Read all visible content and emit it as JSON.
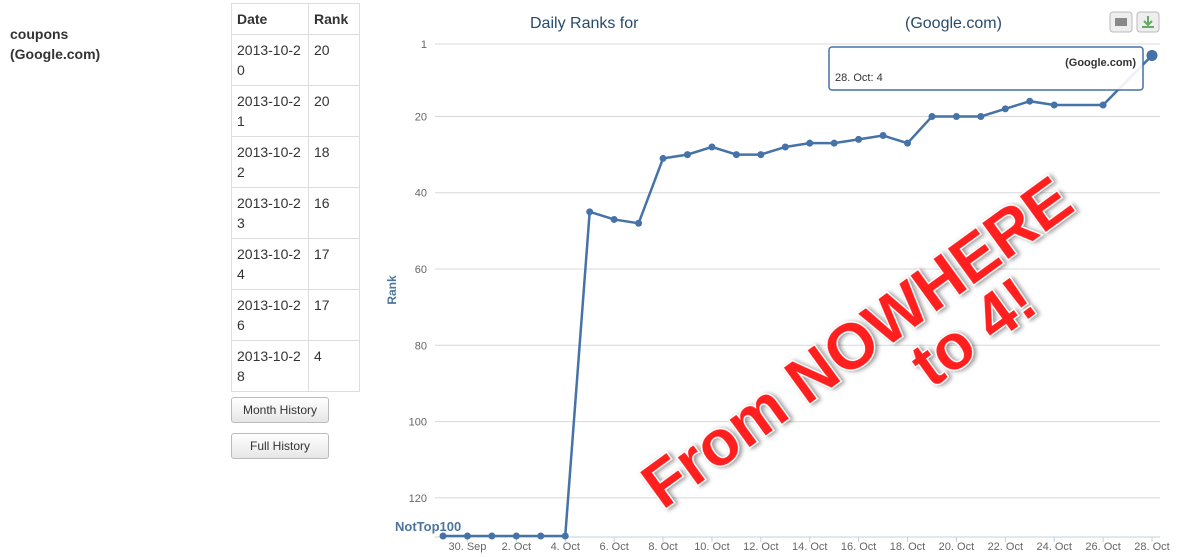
{
  "sidebar": {
    "keyword": "coupons",
    "site": "(Google.com)"
  },
  "table": {
    "header": [
      "Date",
      "Rank"
    ],
    "rows": [
      [
        "2013-10-20",
        20
      ],
      [
        "2013-10-21",
        20
      ],
      [
        "2013-10-22",
        18
      ],
      [
        "2013-10-23",
        16
      ],
      [
        "2013-10-24",
        17
      ],
      [
        "2013-10-26",
        17
      ],
      [
        "2013-10-28",
        4
      ]
    ]
  },
  "buttons": [
    "Month History",
    "Full History"
  ],
  "chart_data": {
    "type": "line",
    "title": "Daily Ranks for",
    "title_suffix": "(Google.com)",
    "y_label": "Rank",
    "x": [
      "2013-09-29",
      "2013-09-30",
      "2013-10-01",
      "2013-10-02",
      "2013-10-03",
      "2013-10-04",
      "2013-10-05",
      "2013-10-06",
      "2013-10-07",
      "2013-10-08",
      "2013-10-09",
      "2013-10-10",
      "2013-10-11",
      "2013-10-12",
      "2013-10-13",
      "2013-10-14",
      "2013-10-15",
      "2013-10-16",
      "2013-10-17",
      "2013-10-18",
      "2013-10-19",
      "2013-10-20",
      "2013-10-21",
      "2013-10-22",
      "2013-10-23",
      "2013-10-24",
      "2013-10-26",
      "2013-10-28"
    ],
    "series": [
      {
        "name": "(Google.com)",
        "color": "#4572a7",
        "values": [
          130,
          130,
          130,
          130,
          130,
          130,
          45,
          47,
          48,
          31,
          30,
          28,
          30,
          30,
          28,
          27,
          27,
          26,
          25,
          27,
          20,
          20,
          20,
          18,
          16,
          17,
          17,
          4
        ]
      }
    ],
    "xlim": [
      "2013-09-29",
      "2013-10-28"
    ],
    "xticks": [
      {
        "value": "2013-09-30",
        "label": "30. Sep"
      },
      {
        "value": "2013-10-02",
        "label": "2. Oct"
      },
      {
        "value": "2013-10-04",
        "label": "4. Oct"
      },
      {
        "value": "2013-10-06",
        "label": "6. Oct"
      },
      {
        "value": "2013-10-08",
        "label": "8. Oct"
      },
      {
        "value": "2013-10-10",
        "label": "10. Oct"
      },
      {
        "value": "2013-10-12",
        "label": "12. Oct"
      },
      {
        "value": "2013-10-14",
        "label": "14. Oct"
      },
      {
        "value": "2013-10-16",
        "label": "16. Oct"
      },
      {
        "value": "2013-10-18",
        "label": "18. Oct"
      },
      {
        "value": "2013-10-20",
        "label": "20. Oct"
      },
      {
        "value": "2013-10-22",
        "label": "22. Oct"
      },
      {
        "value": "2013-10-24",
        "label": "24. Oct"
      },
      {
        "value": "2013-10-26",
        "label": "26. Oct"
      },
      {
        "value": "2013-10-28",
        "label": "28. Oct"
      }
    ],
    "ylim": [
      1,
      130
    ],
    "y_reversed": true,
    "yticks": [
      1,
      20,
      40,
      60,
      80,
      100,
      120,
      {
        "value": 130,
        "label": "NotTop100"
      }
    ],
    "grid": true,
    "tooltip": "28. Oct: 4",
    "annotation": [
      "From NOWHERE",
      "to 4!"
    ]
  }
}
